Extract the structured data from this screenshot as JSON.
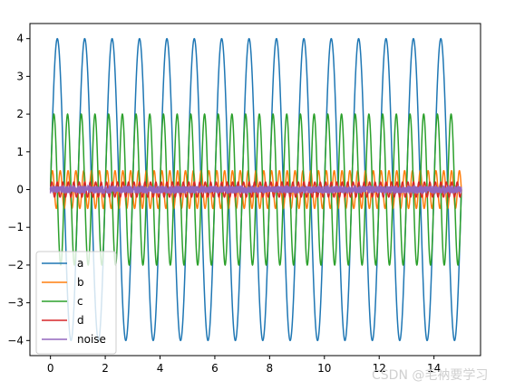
{
  "chart_data": {
    "type": "line",
    "xlim": [
      -0.75,
      15.7
    ],
    "ylim": [
      -4.4,
      4.4
    ],
    "xticks": [
      0,
      2,
      4,
      6,
      8,
      10,
      12,
      14
    ],
    "yticks": [
      -4,
      -3,
      -2,
      -1,
      0,
      1,
      2,
      3,
      4
    ],
    "x_range": [
      0,
      15
    ],
    "grid": false,
    "legend_position": "lower-left",
    "series": [
      {
        "name": "a",
        "color": "#1f77b4",
        "amplitude": 4.0,
        "frequency": 1.0,
        "noise": false
      },
      {
        "name": "b",
        "color": "#ff7f0e",
        "amplitude": 0.5,
        "frequency": 3.5,
        "noise": false
      },
      {
        "name": "c",
        "color": "#2ca02c",
        "amplitude": 2.0,
        "frequency": 2.0,
        "noise": false
      },
      {
        "name": "d",
        "color": "#d62728",
        "amplitude": 0.2,
        "frequency": 5.0,
        "noise": false
      },
      {
        "name": "noise",
        "color": "#9467bd",
        "amplitude": 0.1,
        "frequency": 0,
        "noise": true
      }
    ]
  },
  "watermark": "CSDN @毛衲要学习"
}
